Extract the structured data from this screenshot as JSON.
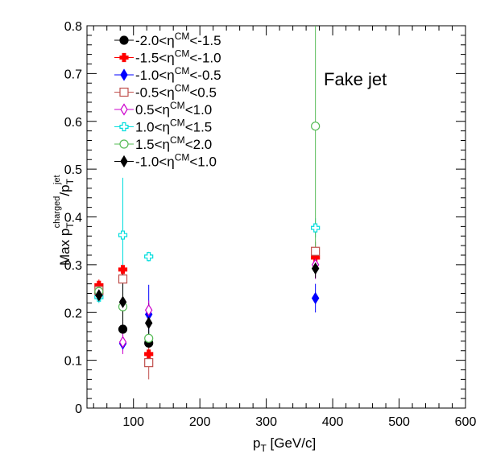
{
  "chart_data": {
    "type": "scatter",
    "title": "",
    "annotation": "Fake jet",
    "xlabel": "p_T [GeV/c]",
    "ylabel": "Max p_T^charged/p_T^jet",
    "xlim": [
      30,
      600
    ],
    "ylim": [
      0,
      0.8
    ],
    "xticks": [
      100,
      200,
      300,
      400,
      500,
      600
    ],
    "yticks": [
      0,
      0.1,
      0.2,
      0.3,
      0.4,
      0.5,
      0.6,
      0.7,
      0.8
    ],
    "grid": false,
    "legend_position": "top-left",
    "series": [
      {
        "name": "-2.0<η_CM<-1.5",
        "color": "#000000",
        "marker": "circle-filled",
        "points": [
          {
            "x": 48,
            "y": 0.24,
            "err": 0.012
          },
          {
            "x": 84,
            "y": 0.165,
            "err": 0.015
          },
          {
            "x": 123,
            "y": 0.136,
            "err": 0.01
          }
        ]
      },
      {
        "name": "-1.5<η_CM<-1.0",
        "color": "#ff0000",
        "marker": "cross-filled",
        "points": [
          {
            "x": 48,
            "y": 0.257,
            "err": 0.012
          },
          {
            "x": 84,
            "y": 0.29,
            "err": 0.015
          },
          {
            "x": 123,
            "y": 0.113,
            "err": 0.015
          },
          {
            "x": 374,
            "y": 0.315,
            "err": 0.02
          }
        ]
      },
      {
        "name": "-1.0<η_CM<-0.5",
        "color": "#0000ff",
        "marker": "diamond-filled",
        "points": [
          {
            "x": 48,
            "y": 0.235,
            "err": 0.012
          },
          {
            "x": 84,
            "y": 0.135,
            "err": 0.015
          },
          {
            "x": 123,
            "y": 0.196,
            "err": 0.062
          },
          {
            "x": 374,
            "y": 0.23,
            "err": 0.03
          }
        ]
      },
      {
        "name": "-0.5<η_CM<0.5",
        "color": "#c0504d",
        "marker": "square-open",
        "points": [
          {
            "x": 48,
            "y": 0.246,
            "err": 0.012
          },
          {
            "x": 84,
            "y": 0.27,
            "err": 0.02
          },
          {
            "x": 123,
            "y": 0.095,
            "err": 0.035
          },
          {
            "x": 374,
            "y": 0.328,
            "err": 0.02
          }
        ]
      },
      {
        "name": "0.5<η_CM<1.0",
        "color": "#cc00cc",
        "marker": "diamond-open",
        "points": [
          {
            "x": 48,
            "y": 0.238,
            "err": 0.012
          },
          {
            "x": 84,
            "y": 0.138,
            "err": 0.025
          },
          {
            "x": 123,
            "y": 0.205,
            "err": 0.02
          },
          {
            "x": 374,
            "y": 0.3,
            "err": 0.03
          }
        ]
      },
      {
        "name": "1.0<η_CM<1.5",
        "color": "#00dddd",
        "marker": "cross-open",
        "points": [
          {
            "x": 48,
            "y": 0.232,
            "err": 0.012
          },
          {
            "x": 84,
            "y": 0.362,
            "err": 0.12
          },
          {
            "x": 123,
            "y": 0.317,
            "err": 0.01
          },
          {
            "x": 374,
            "y": 0.377,
            "err": 0.02
          }
        ]
      },
      {
        "name": "1.5<η_CM<2.0",
        "color": "#55bb55",
        "marker": "circle-open",
        "points": [
          {
            "x": 48,
            "y": 0.244,
            "err": 0.012
          },
          {
            "x": 84,
            "y": 0.212,
            "err": 0.03
          },
          {
            "x": 123,
            "y": 0.146,
            "err": 0.015
          },
          {
            "x": 374,
            "y": 0.59,
            "err": 0.3
          }
        ]
      },
      {
        "name": "-1.0<η_CM<1.0",
        "color": "#000000",
        "marker": "diamond-filled",
        "points": [
          {
            "x": 48,
            "y": 0.236,
            "err": 0.01
          },
          {
            "x": 84,
            "y": 0.222,
            "err": 0.06
          },
          {
            "x": 123,
            "y": 0.178,
            "err": 0.04
          },
          {
            "x": 374,
            "y": 0.292,
            "err": 0.02
          }
        ]
      }
    ]
  }
}
